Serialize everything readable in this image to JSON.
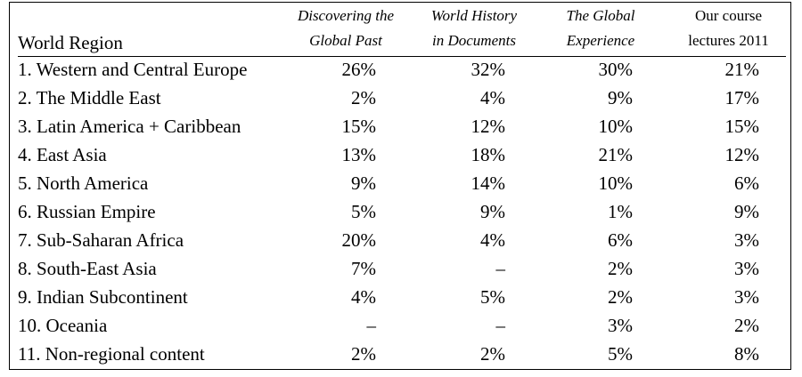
{
  "table": {
    "headers": {
      "region": "World Region",
      "col1": [
        "Discovering the",
        "Global Past"
      ],
      "col2": [
        "World History",
        "in Documents"
      ],
      "col3": [
        "The Global",
        "Experience"
      ],
      "col4": [
        "Our course",
        "lectures 2011"
      ]
    },
    "rows": [
      {
        "region": "1. Western and Central Europe",
        "v": [
          "26%",
          "32%",
          "30%",
          "21%"
        ]
      },
      {
        "region": "2. The Middle East",
        "v": [
          "2%",
          "4%",
          "9%",
          "17%"
        ]
      },
      {
        "region": "3. Latin America + Caribbean",
        "v": [
          "15%",
          "12%",
          "10%",
          "15%"
        ]
      },
      {
        "region": "4. East Asia",
        "v": [
          "13%",
          "18%",
          "21%",
          "12%"
        ]
      },
      {
        "region": "5. North America",
        "v": [
          "9%",
          "14%",
          "10%",
          "6%"
        ]
      },
      {
        "region": "6. Russian Empire",
        "v": [
          "5%",
          "9%",
          "1%",
          "9%"
        ]
      },
      {
        "region": "7. Sub-Saharan Africa",
        "v": [
          "20%",
          "4%",
          "6%",
          "3%"
        ]
      },
      {
        "region": "8. South-East Asia",
        "v": [
          "7%",
          "–",
          "2%",
          "3%"
        ]
      },
      {
        "region": "9. Indian Subcontinent",
        "v": [
          "4%",
          "5%",
          "2%",
          "3%"
        ]
      },
      {
        "region": "10. Oceania",
        "v": [
          "–",
          "–",
          "3%",
          "2%"
        ]
      },
      {
        "region": "11. Non-regional content",
        "v": [
          "2%",
          "2%",
          "5%",
          "8%"
        ]
      }
    ]
  }
}
